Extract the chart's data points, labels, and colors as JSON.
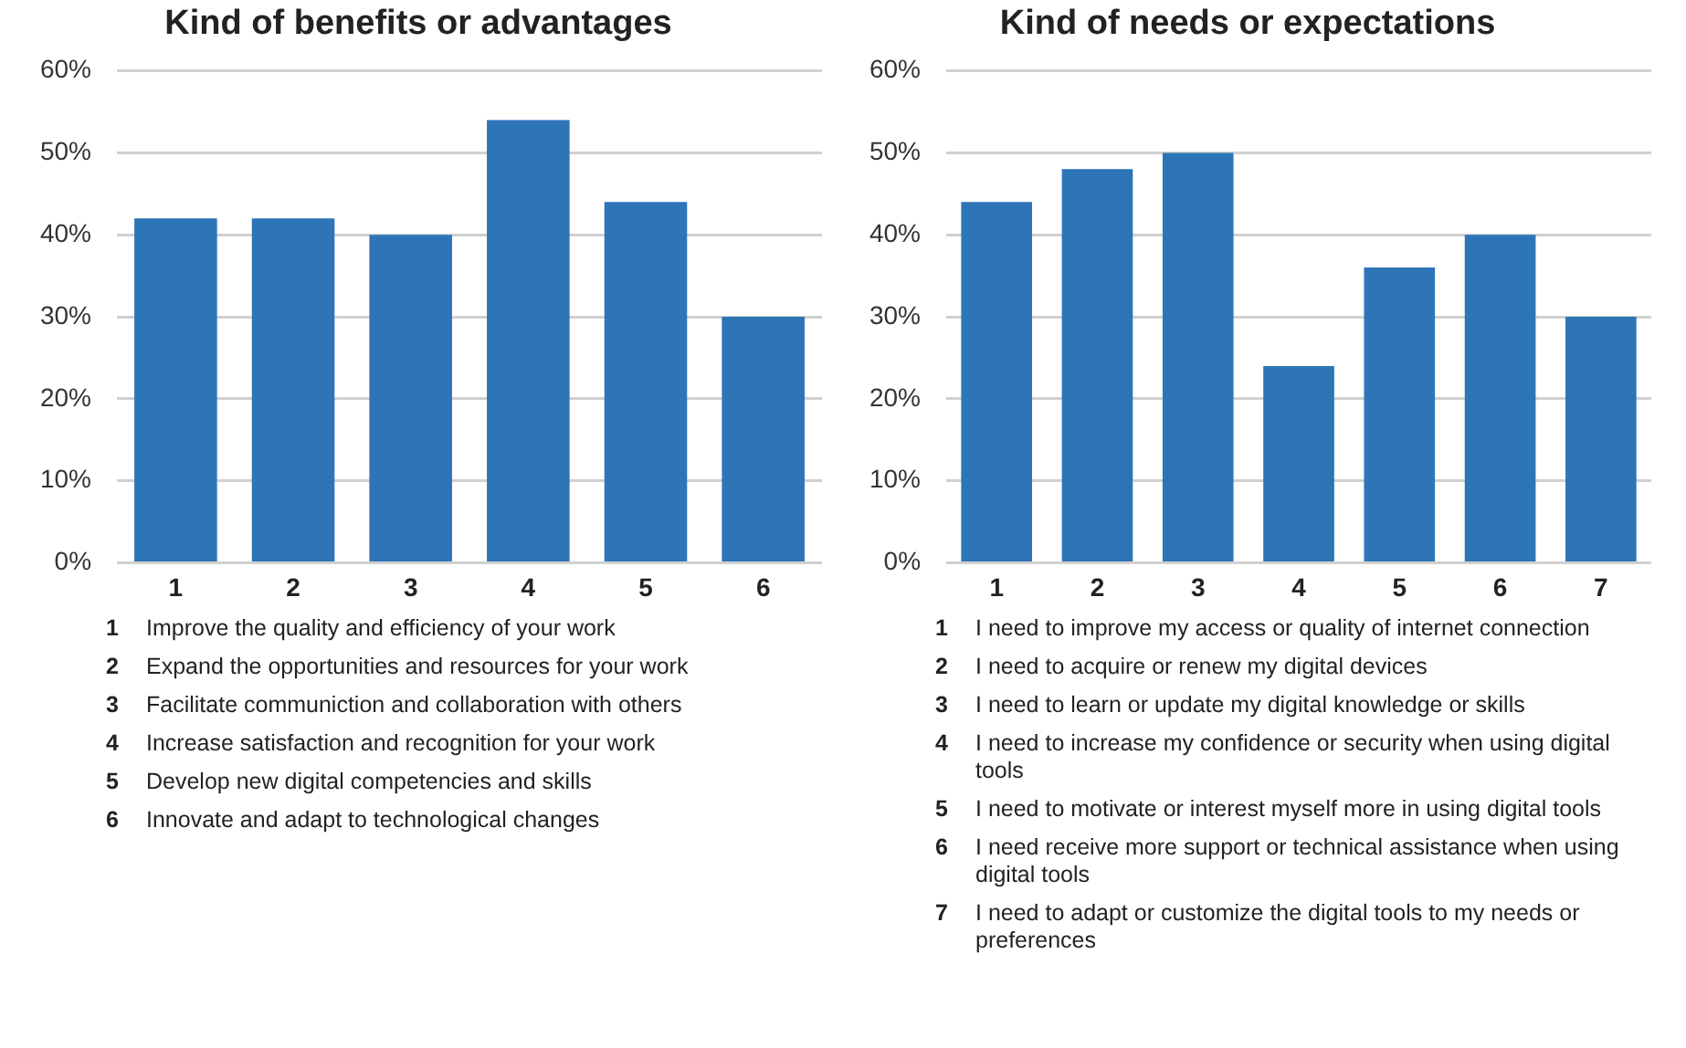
{
  "chart_data": [
    {
      "type": "bar",
      "title": "Kind of benefits or advantages",
      "categories": [
        "1",
        "2",
        "3",
        "4",
        "5",
        "6"
      ],
      "values": [
        42,
        42,
        40,
        54,
        44,
        30
      ],
      "color": "#2e75b8",
      "ylim": [
        0,
        60
      ],
      "yticks": [
        {
          "value": 0,
          "label": "0%"
        },
        {
          "value": 10,
          "label": "10%"
        },
        {
          "value": 20,
          "label": "20%"
        },
        {
          "value": 30,
          "label": "30%"
        },
        {
          "value": 40,
          "label": "40%"
        },
        {
          "value": 50,
          "label": "50%"
        },
        {
          "value": 60,
          "label": "60%"
        }
      ],
      "grid": "y",
      "legend": false,
      "annotations": [
        "Improve the quality and efficiency of your work",
        "Expand the opportunities and resources for your work",
        "Facilitate communiction and collaboration with others",
        "Increase satisfaction and recognition for your work",
        "Develop new digital competencies and skills",
        "Innovate and adapt to technological changes"
      ]
    },
    {
      "type": "bar",
      "title": "Kind of needs or expectations",
      "categories": [
        "1",
        "2",
        "3",
        "4",
        "5",
        "6",
        "7"
      ],
      "values": [
        44,
        48,
        50,
        24,
        36,
        40,
        30
      ],
      "color": "#2e75b8",
      "ylim": [
        0,
        60
      ],
      "yticks": [
        {
          "value": 0,
          "label": "0%"
        },
        {
          "value": 10,
          "label": "10%"
        },
        {
          "value": 20,
          "label": "20%"
        },
        {
          "value": 30,
          "label": "30%"
        },
        {
          "value": 40,
          "label": "40%"
        },
        {
          "value": 50,
          "label": "50%"
        },
        {
          "value": 60,
          "label": "60%"
        }
      ],
      "grid": "y",
      "legend": false,
      "annotations": [
        "I need to improve my access or quality of internet connection",
        "I need to acquire or renew my digital devices",
        "I need to learn or update my digital knowledge or skills",
        "I need to increase my confidence or security when using digital tools",
        "I need to motivate or interest myself more in using digital tools",
        "I need receive more support or technical assistance when using digital tools",
        "I need to adapt or customize the digital tools to my needs or preferences"
      ]
    }
  ]
}
